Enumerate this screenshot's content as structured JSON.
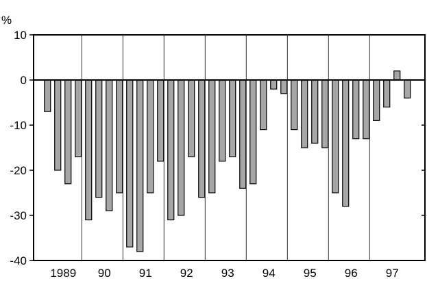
{
  "chart_data": {
    "type": "bar",
    "title": "",
    "xlabel": "",
    "ylabel": "",
    "y_unit_label": "%",
    "ylim": [
      -40,
      10
    ],
    "y_ticks": [
      10,
      0,
      -10,
      -20,
      -30,
      -40
    ],
    "y_tick_labels": [
      "10",
      "0",
      "-10",
      "-20",
      "-30",
      "-40"
    ],
    "x_group_labels": [
      "1989",
      "90",
      "91",
      "92",
      "93",
      "94",
      "95",
      "96",
      "97"
    ],
    "group_separators": true,
    "bars_per_year": 4,
    "series": [
      {
        "values": [
          -7,
          -20,
          -23,
          -17,
          -31,
          -26,
          -29,
          -25,
          -37,
          -38,
          -25,
          -18,
          -31,
          -30,
          -17,
          -26,
          -25,
          -18,
          -17,
          -24,
          -23,
          -11,
          -2,
          -3,
          -11,
          -15,
          -14,
          -15,
          -25,
          -28,
          -13,
          -13,
          -9,
          -6,
          2,
          -4
        ]
      }
    ],
    "bar_color": "#a6a6a6",
    "grid": false,
    "legend": "none"
  }
}
